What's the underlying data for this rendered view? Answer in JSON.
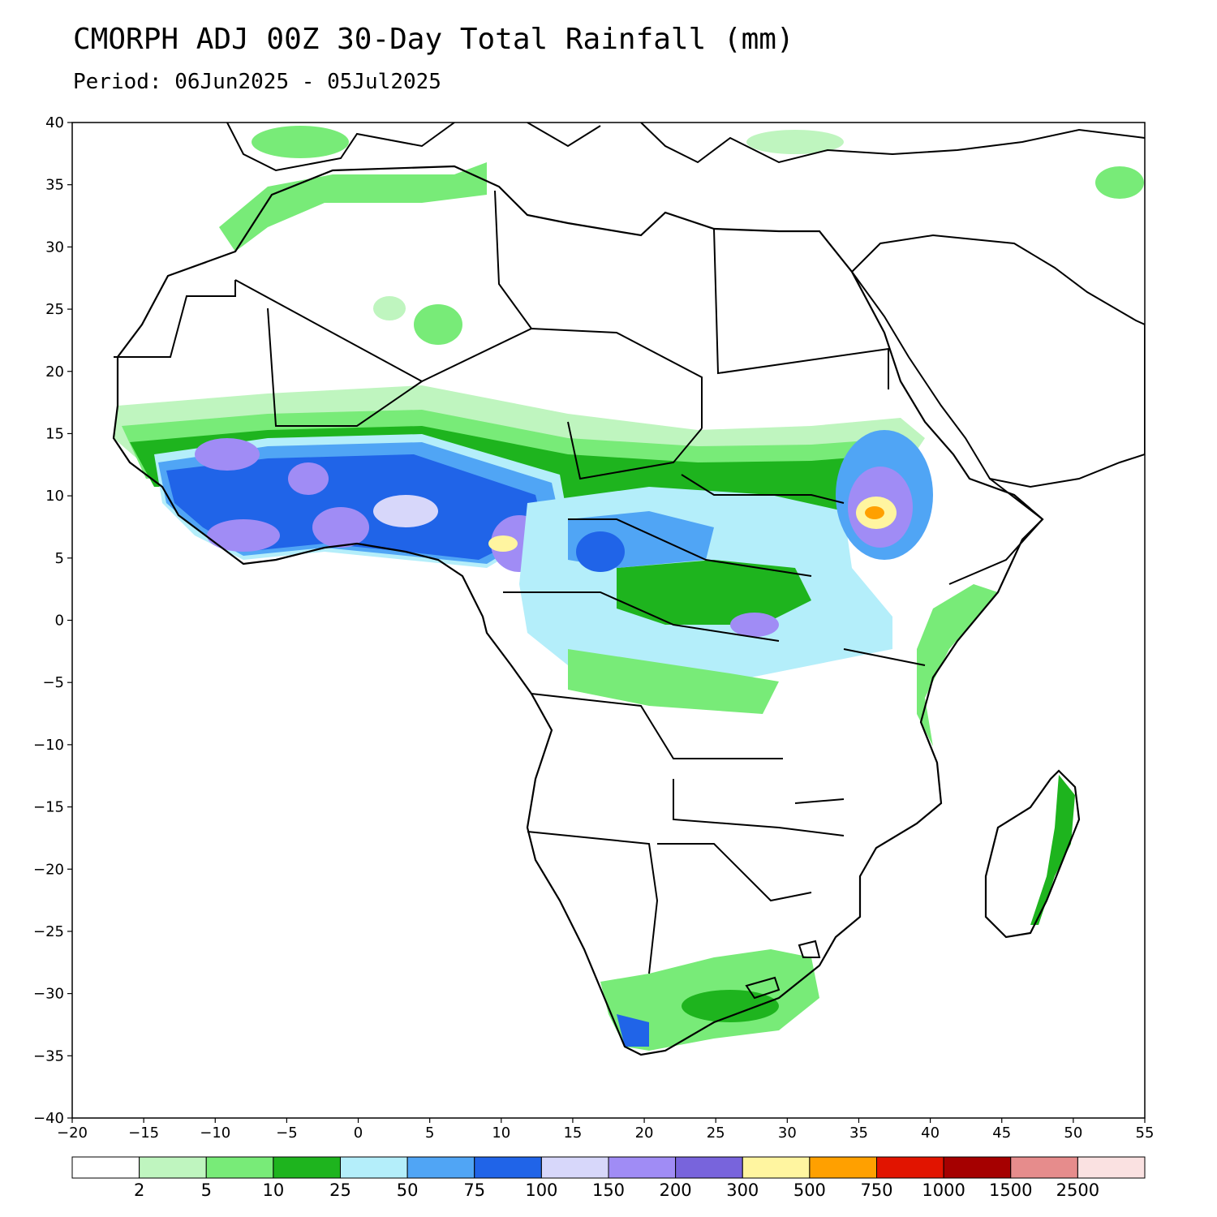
{
  "title": "CMORPH ADJ 00Z 30-Day Total Rainfall (mm)",
  "subtitle": "Period: 06Jun2025 - 05Jul2025",
  "map": {
    "lon_range": [
      -20,
      55
    ],
    "lat_range": [
      -40,
      40
    ],
    "x_ticks": [
      "−20",
      "−15",
      "−10",
      "−5",
      "0",
      "5",
      "10",
      "15",
      "20",
      "25",
      "30",
      "35",
      "40",
      "45",
      "50",
      "55"
    ],
    "y_ticks": [
      "40",
      "35",
      "30",
      "25",
      "20",
      "15",
      "10",
      "5",
      "0",
      "−5",
      "−10",
      "−15",
      "−20",
      "−25",
      "−30",
      "−35",
      "−40"
    ]
  },
  "legend": {
    "colors": [
      "#ffffff",
      "#bff5bf",
      "#78eb78",
      "#1eb41e",
      "#b4eefa",
      "#50a5f5",
      "#2064e8",
      "#d7d7fa",
      "#a08cf5",
      "#7864dc",
      "#fff5a0",
      "#ffa000",
      "#e11400",
      "#a50000",
      "#e68c8c",
      "#fae1e1"
    ],
    "labels": [
      "2",
      "5",
      "10",
      "25",
      "50",
      "75",
      "100",
      "150",
      "200",
      "300",
      "500",
      "750",
      "1000",
      "1500",
      "2500"
    ]
  }
}
